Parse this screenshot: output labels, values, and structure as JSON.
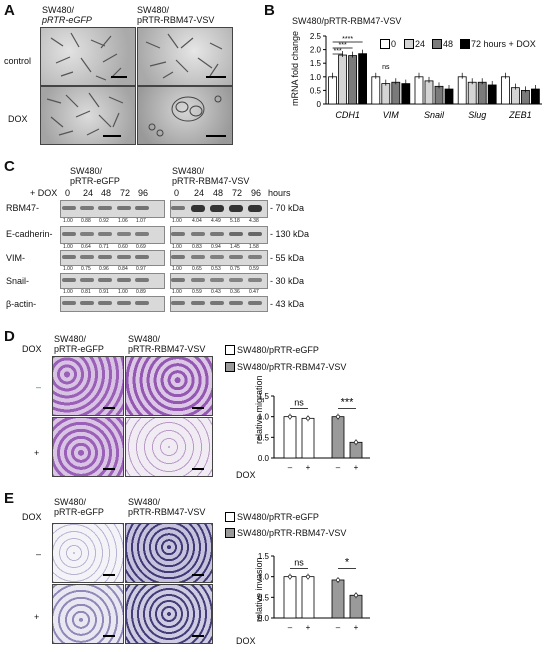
{
  "panelA": {
    "label": "A",
    "col1_line1": "SW480/",
    "col1_line2": "pRTR-eGFP",
    "col2_line1": "SW480/",
    "col2_line2": "pRTR-RBM47-VSV",
    "row1": "control",
    "row2": "DOX"
  },
  "panelB": {
    "label": "B",
    "title": "SW480/pRTR-RBM47-VSV",
    "ylabel": "mRNA fold change",
    "legend": [
      "0",
      "24",
      "48",
      "72 hours + DOX"
    ],
    "ns": "ns"
  },
  "panelC": {
    "label": "C",
    "left_header_1": "SW480/",
    "left_header_2": "pRTR-eGFP",
    "right_header_1": "SW480/",
    "right_header_2": "pRTR-RBM47-VSV",
    "dox_label": "+ DOX",
    "hours_label": "hours",
    "timepoints": [
      "0",
      "24",
      "48",
      "72",
      "96"
    ],
    "rows": [
      {
        "name": "RBM47-",
        "kda": "- 70 kDa",
        "quant": [
          "1.00",
          "0.88",
          "0.92",
          "1.06",
          "1.07",
          "1.00",
          "4.04",
          "4.49",
          "5.18",
          "4.38"
        ]
      },
      {
        "name": "E-cadherin-",
        "kda": "- 130 kDa",
        "quant": [
          "1.00",
          "0.64",
          "0.71",
          "0.60",
          "0.69",
          "1.00",
          "0.83",
          "0.94",
          "1.45",
          "1.58"
        ]
      },
      {
        "name": "VIM-",
        "kda": "- 55 kDa",
        "quant": [
          "1.00",
          "0.75",
          "0.96",
          "0.84",
          "0.97",
          "1.00",
          "0.65",
          "0.53",
          "0.75",
          "0.59"
        ]
      },
      {
        "name": "Snail-",
        "kda": "- 30 kDa",
        "quant": [
          "1.00",
          "0.81",
          "0.91",
          "1.00",
          "0.89",
          "1.00",
          "0.59",
          "0.43",
          "0.36",
          "0.47"
        ]
      },
      {
        "name": "β-actin-",
        "kda": "- 43 kDa",
        "quant": []
      }
    ]
  },
  "panelD": {
    "label": "D",
    "col1_line1": "SW480/",
    "col1_line2": "pRTR-eGFP",
    "col2_line1": "SW480/",
    "col2_line2": "pRTR-RBM47-VSV",
    "dox": "DOX",
    "minus": "–",
    "plus": "+",
    "legend": [
      "SW480/pRTR-eGFP",
      "SW480/pRTR-RBM47-VSV"
    ],
    "ylabel": "relative migration",
    "sig_left": "ns",
    "sig_right": "***",
    "x_dox": "DOX"
  },
  "panelE": {
    "label": "E",
    "col1_line1": "SW480/",
    "col1_line2": "pRTR-eGFP",
    "col2_line1": "SW480/",
    "col2_line2": "pRTR-RBM47-VSV",
    "dox": "DOX",
    "minus": "–",
    "plus": "+",
    "legend": [
      "SW480/pRTR-eGFP",
      "SW480/pRTR-RBM47-VSV"
    ],
    "ylabel": "relative invasion",
    "sig_left": "ns",
    "sig_right": "*",
    "x_dox": "DOX"
  },
  "chart_data": [
    {
      "type": "bar",
      "panel": "B",
      "title": "SW480/pRTR-RBM47-VSV",
      "ylabel": "mRNA fold change",
      "ylim": [
        0,
        2.5
      ],
      "yticks": [
        "0",
        "0.5",
        "1.0",
        "1.5",
        "2.0",
        "2.5"
      ],
      "categories": [
        "CDH1",
        "VIM",
        "Snail",
        "Slug",
        "ZEB1"
      ],
      "series": [
        {
          "name": "0",
          "color": "#ffffff",
          "values": [
            1.0,
            1.0,
            1.0,
            1.0,
            1.0
          ]
        },
        {
          "name": "24",
          "color": "#d4d4d4",
          "values": [
            1.8,
            0.75,
            0.85,
            0.8,
            0.6
          ]
        },
        {
          "name": "48",
          "color": "#7a7a7a",
          "values": [
            1.78,
            0.8,
            0.65,
            0.8,
            0.5
          ]
        },
        {
          "name": "72 hours + DOX",
          "color": "#000000",
          "values": [
            1.85,
            0.75,
            0.55,
            0.7,
            0.55
          ]
        }
      ]
    },
    {
      "type": "bar",
      "panel": "D",
      "ylabel": "relative migration",
      "ylim": [
        0,
        1.5
      ],
      "yticks": [
        "0.0",
        "0.5",
        "1.0",
        "1.5"
      ],
      "categories": [
        "–",
        "+",
        "–",
        "+"
      ],
      "series": [
        {
          "name": "SW480/pRTR-eGFP",
          "color": "#ffffff",
          "values": [
            1.0,
            0.96,
            null,
            null
          ]
        },
        {
          "name": "SW480/pRTR-RBM47-VSV",
          "color": "#9a9a9a",
          "values": [
            null,
            null,
            1.0,
            0.38
          ]
        }
      ]
    },
    {
      "type": "bar",
      "panel": "E",
      "ylabel": "relative invasion",
      "ylim": [
        0,
        1.5
      ],
      "yticks": [
        "0.0",
        "0.5",
        "1.0",
        "1.5"
      ],
      "categories": [
        "–",
        "+",
        "–",
        "+"
      ],
      "series": [
        {
          "name": "SW480/pRTR-eGFP",
          "color": "#ffffff",
          "values": [
            1.0,
            1.0,
            null,
            null
          ]
        },
        {
          "name": "SW480/pRTR-RBM47-VSV",
          "color": "#9a9a9a",
          "values": [
            null,
            null,
            0.92,
            0.55
          ]
        }
      ]
    }
  ]
}
